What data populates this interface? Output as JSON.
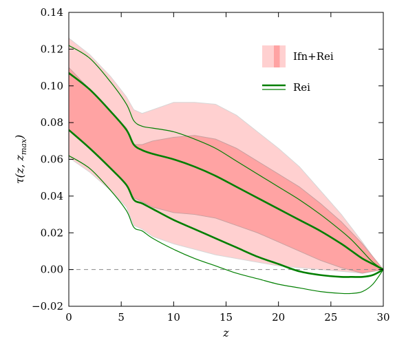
{
  "chart_data": {
    "type": "area",
    "xlabel": "z",
    "ylabel": "τ(z, z_max)",
    "ylabel_parts": {
      "tau": "τ",
      "open": "(",
      "z": "z",
      "comma": ", ",
      "zsym": "z",
      "sub": "max",
      "close": ")"
    },
    "xlim": [
      0,
      30
    ],
    "ylim": [
      -0.02,
      0.14
    ],
    "x_ticks": [
      0,
      5,
      10,
      15,
      20,
      25,
      30
    ],
    "x_tick_labels": [
      "0",
      "5",
      "10",
      "15",
      "20",
      "25",
      "30"
    ],
    "y_ticks": [
      -0.02,
      0.0,
      0.02,
      0.04,
      0.06,
      0.08,
      0.1,
      0.12,
      0.14
    ],
    "y_tick_labels": [
      "−0.02",
      "0.00",
      "0.02",
      "0.04",
      "0.06",
      "0.08",
      "0.10",
      "0.12",
      "0.14"
    ],
    "grid": false,
    "reference_line": {
      "y": 0.0,
      "style": "dashed"
    },
    "legend": {
      "placement": "top-right",
      "entries": [
        {
          "label": "Ifn+Rei",
          "kind": "band"
        },
        {
          "label": "Rei",
          "kind": "line"
        }
      ]
    },
    "series": [
      {
        "name": "Ifn+Rei",
        "kind": "band",
        "bands": [
          {
            "level": "outer",
            "color": "#ffd0d0",
            "x": [
              0,
              2,
              4,
              5.5,
              6.2,
              7,
              8,
              10,
              12,
              14,
              16,
              18,
              20,
              22,
              24,
              26,
              28,
              29,
              30
            ],
            "upper": [
              0.126,
              0.117,
              0.105,
              0.094,
              0.087,
              0.085,
              0.087,
              0.091,
              0.091,
              0.09,
              0.084,
              0.075,
              0.066,
              0.056,
              0.043,
              0.03,
              0.015,
              0.007,
              0.0
            ],
            "lower": [
              0.061,
              0.053,
              0.043,
              0.034,
              0.024,
              0.022,
              0.018,
              0.014,
              0.011,
              0.008,
              0.006,
              0.004,
              0.002,
              0.001,
              0.0,
              -0.001,
              -0.002,
              -0.001,
              0.0
            ]
          },
          {
            "level": "inner",
            "color": "#ffa3a3",
            "x": [
              0,
              2,
              4,
              5.5,
              6.2,
              7,
              8,
              10,
              12,
              14,
              16,
              18,
              20,
              22,
              24,
              26,
              28,
              29,
              30
            ],
            "upper": [
              0.11,
              0.098,
              0.086,
              0.077,
              0.068,
              0.068,
              0.07,
              0.072,
              0.073,
              0.071,
              0.066,
              0.059,
              0.052,
              0.045,
              0.036,
              0.026,
              0.014,
              0.007,
              0.0
            ],
            "lower": [
              0.076,
              0.066,
              0.055,
              0.046,
              0.039,
              0.037,
              0.034,
              0.031,
              0.03,
              0.028,
              0.024,
              0.02,
              0.015,
              0.01,
              0.005,
              0.001,
              -0.002,
              -0.001,
              0.0
            ]
          }
        ]
      },
      {
        "name": "Rei",
        "kind": "lines",
        "color": "#007f00",
        "x": [
          0,
          2,
          4,
          5.5,
          6.2,
          7,
          8,
          10,
          12,
          14,
          16,
          18,
          20,
          22,
          24,
          26,
          27,
          28,
          29,
          30
        ],
        "curves": [
          {
            "level": "outer-upper",
            "width": 1.2,
            "y": [
              0.122,
              0.115,
              0.102,
              0.09,
              0.081,
              0.078,
              0.077,
              0.075,
              0.071,
              0.066,
              0.059,
              0.052,
              0.045,
              0.038,
              0.03,
              0.021,
              0.016,
              0.01,
              0.004,
              0.0
            ]
          },
          {
            "level": "inner-upper",
            "width": 2.6,
            "y": [
              0.107,
              0.098,
              0.086,
              0.076,
              0.068,
              0.065,
              0.063,
              0.06,
              0.056,
              0.051,
              0.045,
              0.039,
              0.033,
              0.027,
              0.021,
              0.014,
              0.01,
              0.006,
              0.003,
              0.0
            ]
          },
          {
            "level": "inner-lower",
            "width": 2.6,
            "y": [
              0.076,
              0.066,
              0.055,
              0.046,
              0.038,
              0.036,
              0.033,
              0.027,
              0.022,
              0.017,
              0.012,
              0.007,
              0.003,
              -0.001,
              -0.003,
              -0.004,
              -0.004,
              -0.004,
              -0.003,
              0.0
            ]
          },
          {
            "level": "outer-lower",
            "width": 1.2,
            "y": [
              0.062,
              0.055,
              0.043,
              0.032,
              0.023,
              0.021,
              0.017,
              0.011,
              0.006,
              0.002,
              -0.002,
              -0.005,
              -0.008,
              -0.01,
              -0.012,
              -0.013,
              -0.013,
              -0.012,
              -0.008,
              0.0
            ]
          }
        ]
      }
    ]
  }
}
